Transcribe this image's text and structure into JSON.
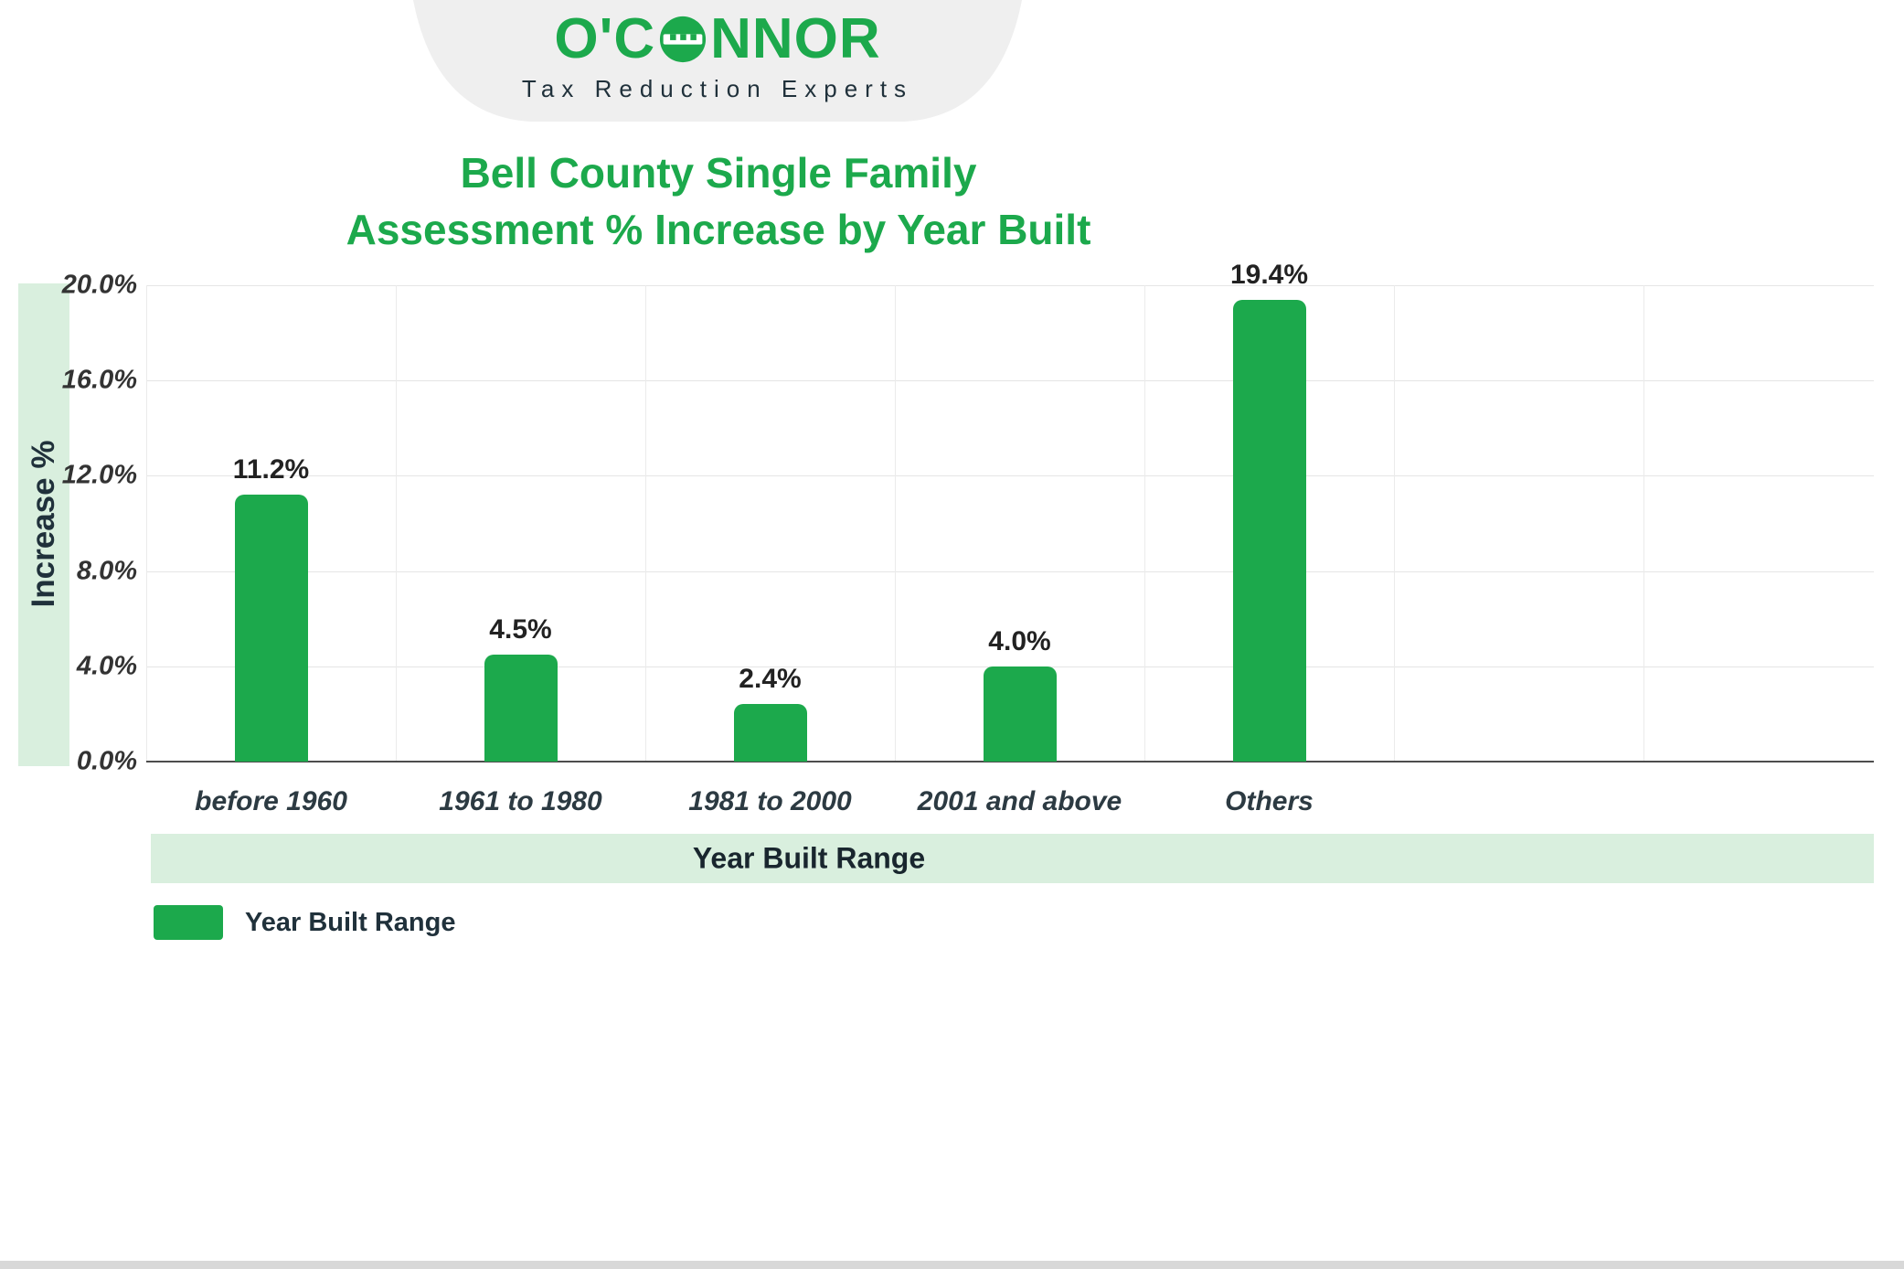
{
  "brand": {
    "name": "O'CONNOR",
    "name_left": "O'C",
    "name_right": "NNOR",
    "tagline": "Tax Reduction Experts"
  },
  "title": {
    "line1": "Bell County Single Family",
    "line2": "Assessment % Increase by Year Built"
  },
  "chart_data": {
    "type": "bar",
    "title": "Bell County Single Family Assessment % Increase by Year Built",
    "categories": [
      "before 1960",
      "1961 to 1980",
      "1981 to 2000",
      "2001 and above",
      "Others"
    ],
    "values": [
      11.2,
      4.5,
      2.4,
      4.0,
      19.4
    ],
    "data_labels": [
      "11.2%",
      "4.5%",
      "2.4%",
      "4.0%",
      "19.4%"
    ],
    "xlabel": "Year Built Range",
    "ylabel": "Increase %",
    "ylim": [
      0,
      20
    ],
    "ytick_step": 4,
    "ytick_labels": [
      "0.0%",
      "4.0%",
      "8.0%",
      "12.0%",
      "16.0%",
      "20.0%"
    ],
    "grid": true,
    "bar_color": "#1CA94C",
    "legend": {
      "position": "bottom-left",
      "items": [
        {
          "label": "Year Built Range",
          "color": "#1CA94C"
        }
      ]
    }
  },
  "colors": {
    "primary_green": "#1CA94C",
    "light_green": "#D9EFDE",
    "dark_text": "#20313B",
    "grid_line": "#E5E5E5"
  }
}
